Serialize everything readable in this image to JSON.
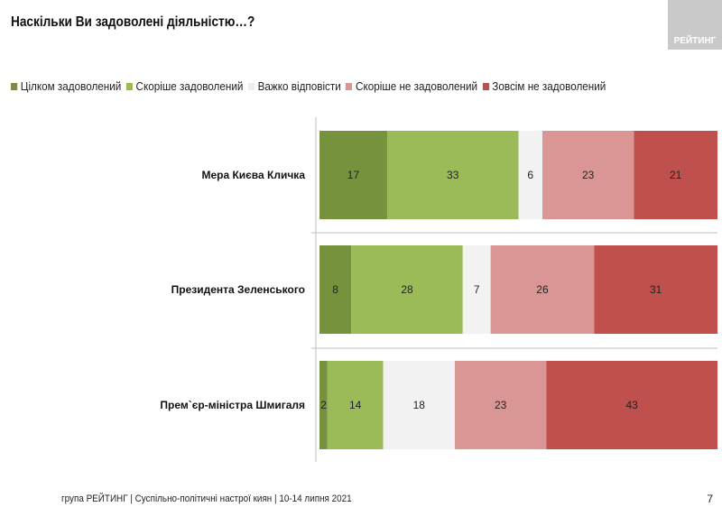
{
  "logo_text": "РЕЙТИНГ",
  "footer": "група РЕЙТИНГ | Суспільно-політичні настрої киян |  10-14 липня 2021",
  "page_number": "7",
  "chart_data": {
    "type": "bar",
    "orientation": "horizontal-stacked-100",
    "title": "Наскільки Ви задоволені діяльністю…?",
    "categories": [
      "Мера Києва Кличка",
      "Президента Зеленського",
      "Прем`єр-міністра Шмигаля"
    ],
    "series": [
      {
        "name": "Цілком задоволений",
        "color": "#76923c",
        "values": [
          17,
          8,
          2
        ]
      },
      {
        "name": "Скоріше задоволений",
        "color": "#9bbb59",
        "values": [
          33,
          28,
          14
        ]
      },
      {
        "name": "Важко відповісти",
        "color": "#f2f2f2",
        "values": [
          6,
          7,
          18
        ]
      },
      {
        "name": "Скоріше не задоволений",
        "color": "#da9694",
        "values": [
          23,
          26,
          23
        ]
      },
      {
        "name": "Зовсім не задоволений",
        "color": "#c0504d",
        "values": [
          21,
          31,
          43
        ]
      }
    ],
    "xlim": [
      0,
      100
    ],
    "legend": "top"
  }
}
